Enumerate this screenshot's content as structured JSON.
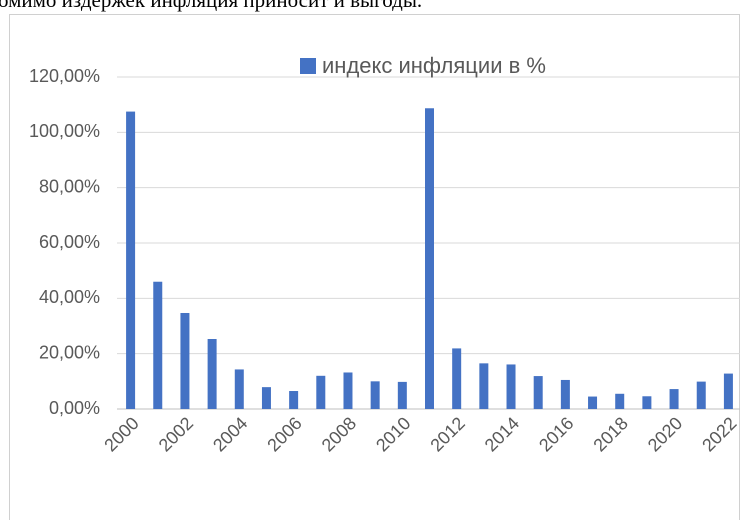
{
  "text": "омимо издержек инфляция приносит и выгоды.",
  "chart_data": {
    "type": "bar",
    "categories": [
      "2000",
      null,
      "2002",
      null,
      "2004",
      null,
      "2006",
      null,
      "2008",
      null,
      "2010",
      null,
      "2012",
      null,
      "2014",
      null,
      "2016",
      null,
      "2018",
      null,
      "2020",
      null,
      "2022"
    ],
    "series": [
      {
        "name": "индекс инфляции в %",
        "color": "#4472c4",
        "values": [
          107.5,
          46,
          34.7,
          25.3,
          14.3,
          7.9,
          6.5,
          12,
          13.2,
          10,
          9.8,
          108.7,
          21.9,
          16.5,
          16.1,
          11.9,
          10.5,
          4.5,
          5.5,
          4.6,
          7.2,
          9.9,
          12.8
        ]
      }
    ],
    "ylim": [
      0,
      120
    ],
    "yticks": [
      {
        "value": 0,
        "label": "0,00%"
      },
      {
        "value": 20,
        "label": "20,00%"
      },
      {
        "value": 40,
        "label": "40,00%"
      },
      {
        "value": 60,
        "label": "60,00%"
      },
      {
        "value": 80,
        "label": "80,00%"
      },
      {
        "value": 100,
        "label": "100,00%"
      },
      {
        "value": 120,
        "label": "120,00%"
      }
    ],
    "grid": true,
    "legend": "top"
  }
}
